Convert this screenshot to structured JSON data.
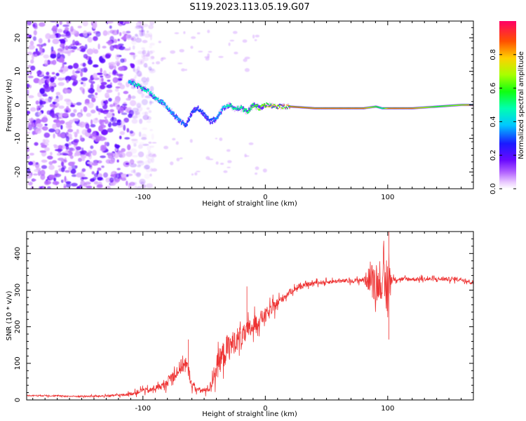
{
  "figure_title": "S119.2023.113.05.19.G07",
  "colorbar": {
    "label": "Normalized spectral amplitude",
    "range": [
      0,
      1
    ],
    "ticks": [
      "0.0",
      "0.2",
      "0.4",
      "0.6",
      "0.8"
    ],
    "tick_values": [
      0.0,
      0.2,
      0.4,
      0.6,
      0.8
    ]
  },
  "chart_data": [
    {
      "type": "heatmap",
      "title": "",
      "xlabel": "Height of straight line (km)",
      "ylabel": "Frequency (Hz)",
      "xlim": [
        -195,
        170
      ],
      "ylim": [
        -25,
        25
      ],
      "x_ticks": [
        -100,
        0,
        100
      ],
      "x_tick_labels": [
        "-100",
        "0",
        "100"
      ],
      "y_ticks": [
        -20,
        -10,
        0,
        10,
        20
      ],
      "y_tick_labels": [
        "-20",
        "-10",
        "0",
        "10",
        "20"
      ],
      "noise_region_x": [
        -195,
        -100
      ],
      "ridge": {
        "description_x": [
          -112,
          -103,
          -96,
          -90,
          -85,
          -80,
          -75,
          -70,
          -65,
          -60,
          -55,
          -50,
          -45,
          -40,
          -35,
          -30,
          -25,
          -20,
          -15,
          -10,
          -5,
          0,
          10,
          20,
          40,
          60,
          80,
          90,
          95,
          100,
          120,
          140,
          160,
          170
        ],
        "freq": [
          7,
          5.5,
          4,
          2,
          1,
          -1,
          -3,
          -5,
          -6,
          -2,
          -1,
          -3,
          -5,
          -4,
          -1,
          0,
          -1,
          -1,
          -2,
          0,
          -1,
          0,
          -0.5,
          -0.5,
          -1,
          -1,
          -1,
          -0.5,
          -1,
          -1,
          -1,
          -0.5,
          0,
          0
        ],
        "amplitude": [
          0.4,
          0.5,
          0.45,
          0.45,
          0.4,
          0.4,
          0.35,
          0.35,
          0.3,
          0.3,
          0.3,
          0.3,
          0.3,
          0.35,
          0.4,
          0.5,
          0.5,
          0.5,
          0.55,
          0.6,
          0.7,
          0.75,
          0.8,
          0.85,
          0.85,
          0.85,
          0.85,
          0.6,
          0.5,
          0.85,
          0.85,
          0.6,
          0.7,
          0.9
        ]
      }
    },
    {
      "type": "line",
      "title": "",
      "xlabel": "Height of straight line (km)",
      "ylabel": "SNR (10 * v/v)",
      "xlim": [
        -195,
        170
      ],
      "ylim": [
        0,
        460
      ],
      "x_ticks": [
        -100,
        0,
        100
      ],
      "x_tick_labels": [
        "-100",
        "0",
        "100"
      ],
      "y_ticks": [
        0,
        100,
        200,
        300,
        400
      ],
      "y_tick_labels": [
        "0",
        "100",
        "200",
        "300",
        "400"
      ],
      "color": "#ee3333",
      "series": [
        {
          "name": "SNR",
          "x": [
            -195,
            -180,
            -160,
            -140,
            -125,
            -115,
            -105,
            -100,
            -95,
            -88,
            -82,
            -78,
            -74,
            -70,
            -67,
            -64,
            -62,
            -60,
            -55,
            -50,
            -45,
            -42,
            -40,
            -37,
            -34,
            -31,
            -28,
            -25,
            -22,
            -18,
            -15,
            -12,
            -9,
            -6,
            -3,
            0,
            5,
            10,
            15,
            20,
            25,
            30,
            35,
            40,
            50,
            60,
            70,
            80,
            86,
            88,
            90,
            92,
            94,
            96,
            98,
            100,
            102,
            104,
            106,
            110,
            120,
            130,
            140,
            150,
            160,
            170
          ],
          "y": [
            12,
            12,
            10,
            10,
            12,
            14,
            20,
            28,
            25,
            35,
            40,
            60,
            70,
            85,
            100,
            90,
            70,
            40,
            28,
            25,
            35,
            70,
            90,
            110,
            125,
            140,
            150,
            160,
            170,
            175,
            185,
            195,
            205,
            215,
            225,
            230,
            245,
            265,
            280,
            295,
            305,
            310,
            315,
            320,
            322,
            325,
            325,
            328,
            330,
            320,
            330,
            320,
            310,
            320,
            300,
            320,
            330,
            330,
            330,
            330,
            330,
            330,
            330,
            330,
            330,
            320
          ],
          "jitter": [
            2,
            3,
            3,
            3,
            4,
            5,
            8,
            10,
            10,
            12,
            15,
            20,
            25,
            30,
            35,
            30,
            25,
            15,
            10,
            10,
            20,
            35,
            45,
            50,
            55,
            55,
            50,
            45,
            45,
            40,
            40,
            40,
            35,
            30,
            30,
            30,
            25,
            20,
            15,
            12,
            10,
            8,
            8,
            8,
            8,
            8,
            8,
            10,
            60,
            80,
            70,
            60,
            50,
            60,
            120,
            160,
            40,
            10,
            8,
            8,
            8,
            8,
            8,
            8,
            8,
            8
          ],
          "annotated_extremes": [
            {
              "x": -63,
              "y": 165
            },
            {
              "x": -15,
              "y": 310
            },
            {
              "x": 101,
              "y": 460
            },
            {
              "x": 101,
              "y": 165
            }
          ]
        }
      ]
    }
  ]
}
